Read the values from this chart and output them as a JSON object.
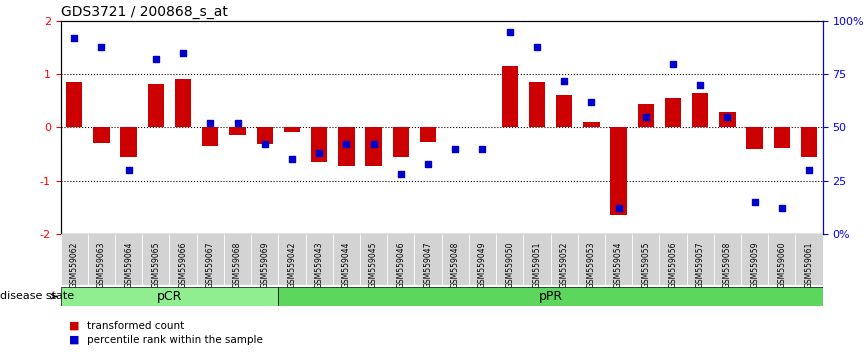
{
  "title": "GDS3721 / 200868_s_at",
  "samples": [
    "GSM559062",
    "GSM559063",
    "GSM559064",
    "GSM559065",
    "GSM559066",
    "GSM559067",
    "GSM559068",
    "GSM559069",
    "GSM559042",
    "GSM559043",
    "GSM559044",
    "GSM559045",
    "GSM559046",
    "GSM559047",
    "GSM559048",
    "GSM559049",
    "GSM559050",
    "GSM559051",
    "GSM559052",
    "GSM559053",
    "GSM559054",
    "GSM559055",
    "GSM559056",
    "GSM559057",
    "GSM559058",
    "GSM559059",
    "GSM559060",
    "GSM559061"
  ],
  "bar_values": [
    0.85,
    -0.3,
    -0.55,
    0.82,
    0.92,
    -0.35,
    -0.15,
    -0.32,
    -0.08,
    -0.65,
    -0.72,
    -0.72,
    -0.55,
    -0.28,
    0.0,
    0.0,
    1.15,
    0.85,
    0.62,
    0.1,
    -1.65,
    0.45,
    0.55,
    0.65,
    0.3,
    -0.4,
    -0.38,
    -0.55
  ],
  "dot_values": [
    92,
    88,
    30,
    82,
    85,
    52,
    52,
    42,
    35,
    38,
    42,
    42,
    28,
    33,
    40,
    40,
    95,
    88,
    72,
    62,
    12,
    55,
    80,
    70,
    55,
    15,
    12,
    30
  ],
  "pCR_count": 8,
  "pPR_count": 20,
  "ylim": [
    -2,
    2
  ],
  "y2lim": [
    0,
    100
  ],
  "yticks": [
    -2,
    -1,
    0,
    1,
    2
  ],
  "y2ticks": [
    0,
    25,
    50,
    75,
    100
  ],
  "y2ticklabels": [
    "0%",
    "25",
    "50",
    "75",
    "100%"
  ],
  "bar_color": "#cc0000",
  "dot_color": "#0000cc",
  "pCR_color": "#90ee90",
  "pPR_color": "#5cd65c",
  "tick_bg_color": "#d3d3d3",
  "legend_bar_label": "transformed count",
  "legend_dot_label": "percentile rank within the sample",
  "disease_state_label": "disease state",
  "pCR_label": "pCR",
  "pPR_label": "pPR"
}
